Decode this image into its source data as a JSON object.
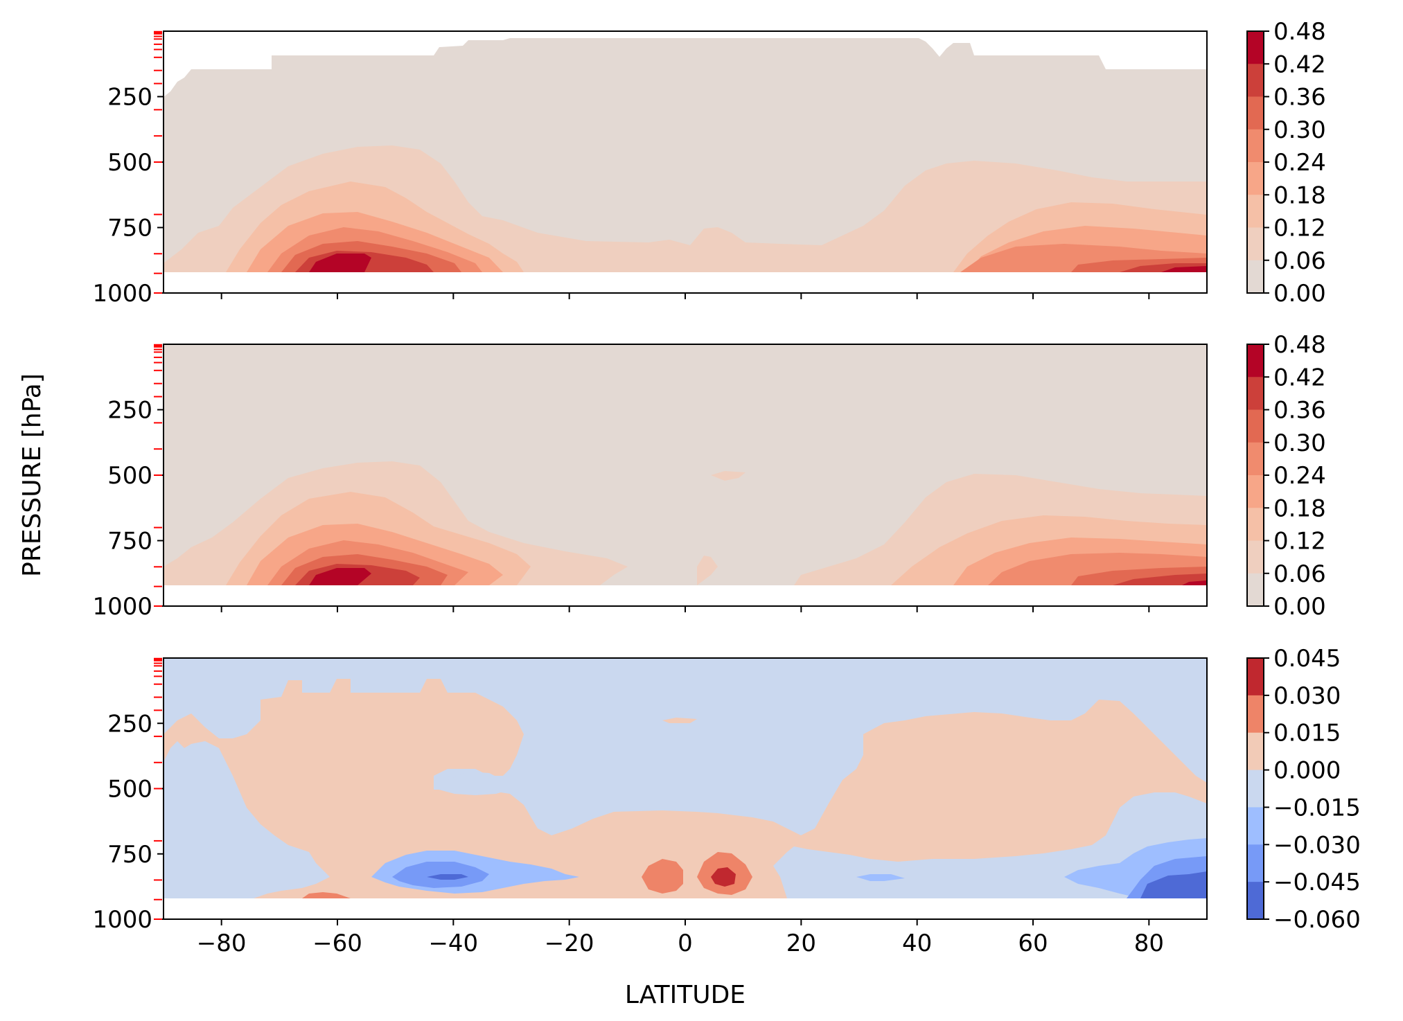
{
  "figure": {
    "ylabel": "PRESSURE [hPa]",
    "xlabel": "LATITUDE"
  },
  "chart_data": [
    {
      "type": "heatmap",
      "x_ticks": [
        "−80",
        "−60",
        "−40",
        "−20",
        "0",
        "20",
        "40",
        "60",
        "80"
      ],
      "x_tick_values": [
        -80,
        -60,
        -40,
        -20,
        0,
        20,
        40,
        60,
        80
      ],
      "xlim": [
        -90,
        90
      ],
      "y_ticks": [
        "250",
        "500",
        "750",
        "1000"
      ],
      "y_tick_values": [
        250,
        500,
        750,
        1000
      ],
      "ylim": [
        1000,
        0
      ],
      "y_inverted": true,
      "colorbar": {
        "ticks": [
          "0.48",
          "0.42",
          "0.36",
          "0.30",
          "0.24",
          "0.18",
          "0.12",
          "0.06",
          "0.00"
        ],
        "colors": [
          "#b40426",
          "#cc403a",
          "#e26952",
          "#f08b6e",
          "#f7a688",
          "#f5c0a7",
          "#efcfbf",
          "#e3d9d3"
        ]
      }
    },
    {
      "type": "heatmap",
      "x_ticks": [
        "−80",
        "−60",
        "−40",
        "−20",
        "0",
        "20",
        "40",
        "60",
        "80"
      ],
      "x_tick_values": [
        -80,
        -60,
        -40,
        -20,
        0,
        20,
        40,
        60,
        80
      ],
      "xlim": [
        -90,
        90
      ],
      "y_ticks": [
        "250",
        "500",
        "750",
        "1000"
      ],
      "y_tick_values": [
        250,
        500,
        750,
        1000
      ],
      "ylim": [
        1000,
        0
      ],
      "y_inverted": true,
      "colorbar": {
        "ticks": [
          "0.48",
          "0.42",
          "0.36",
          "0.30",
          "0.24",
          "0.18",
          "0.12",
          "0.06",
          "0.00"
        ],
        "colors": [
          "#b40426",
          "#cc403a",
          "#e26952",
          "#f08b6e",
          "#f7a688",
          "#f5c0a7",
          "#efcfbf",
          "#e3d9d3"
        ]
      }
    },
    {
      "type": "heatmap",
      "x_ticks": [
        "−80",
        "−60",
        "−40",
        "−20",
        "0",
        "20",
        "40",
        "60",
        "80"
      ],
      "x_tick_values": [
        -80,
        -60,
        -40,
        -20,
        0,
        20,
        40,
        60,
        80
      ],
      "xlim": [
        -90,
        90
      ],
      "y_ticks": [
        "250",
        "500",
        "750",
        "1000"
      ],
      "y_tick_values": [
        250,
        500,
        750,
        1000
      ],
      "ylim": [
        1000,
        0
      ],
      "y_inverted": true,
      "colorbar": {
        "ticks": [
          "0.045",
          "0.030",
          "0.015",
          "0.000",
          "−0.015",
          "−0.030",
          "−0.045",
          "−0.060"
        ],
        "colors": [
          "#c0282f",
          "#ee8468",
          "#f2cbb7",
          "#cad8ef",
          "#9ebeff",
          "#779af7",
          "#4e6ad6"
        ]
      }
    }
  ],
  "colors": {
    "background_warm": "#e3d9d3",
    "background_cool": "#cad8ef",
    "level_marker": "#ff0000"
  }
}
